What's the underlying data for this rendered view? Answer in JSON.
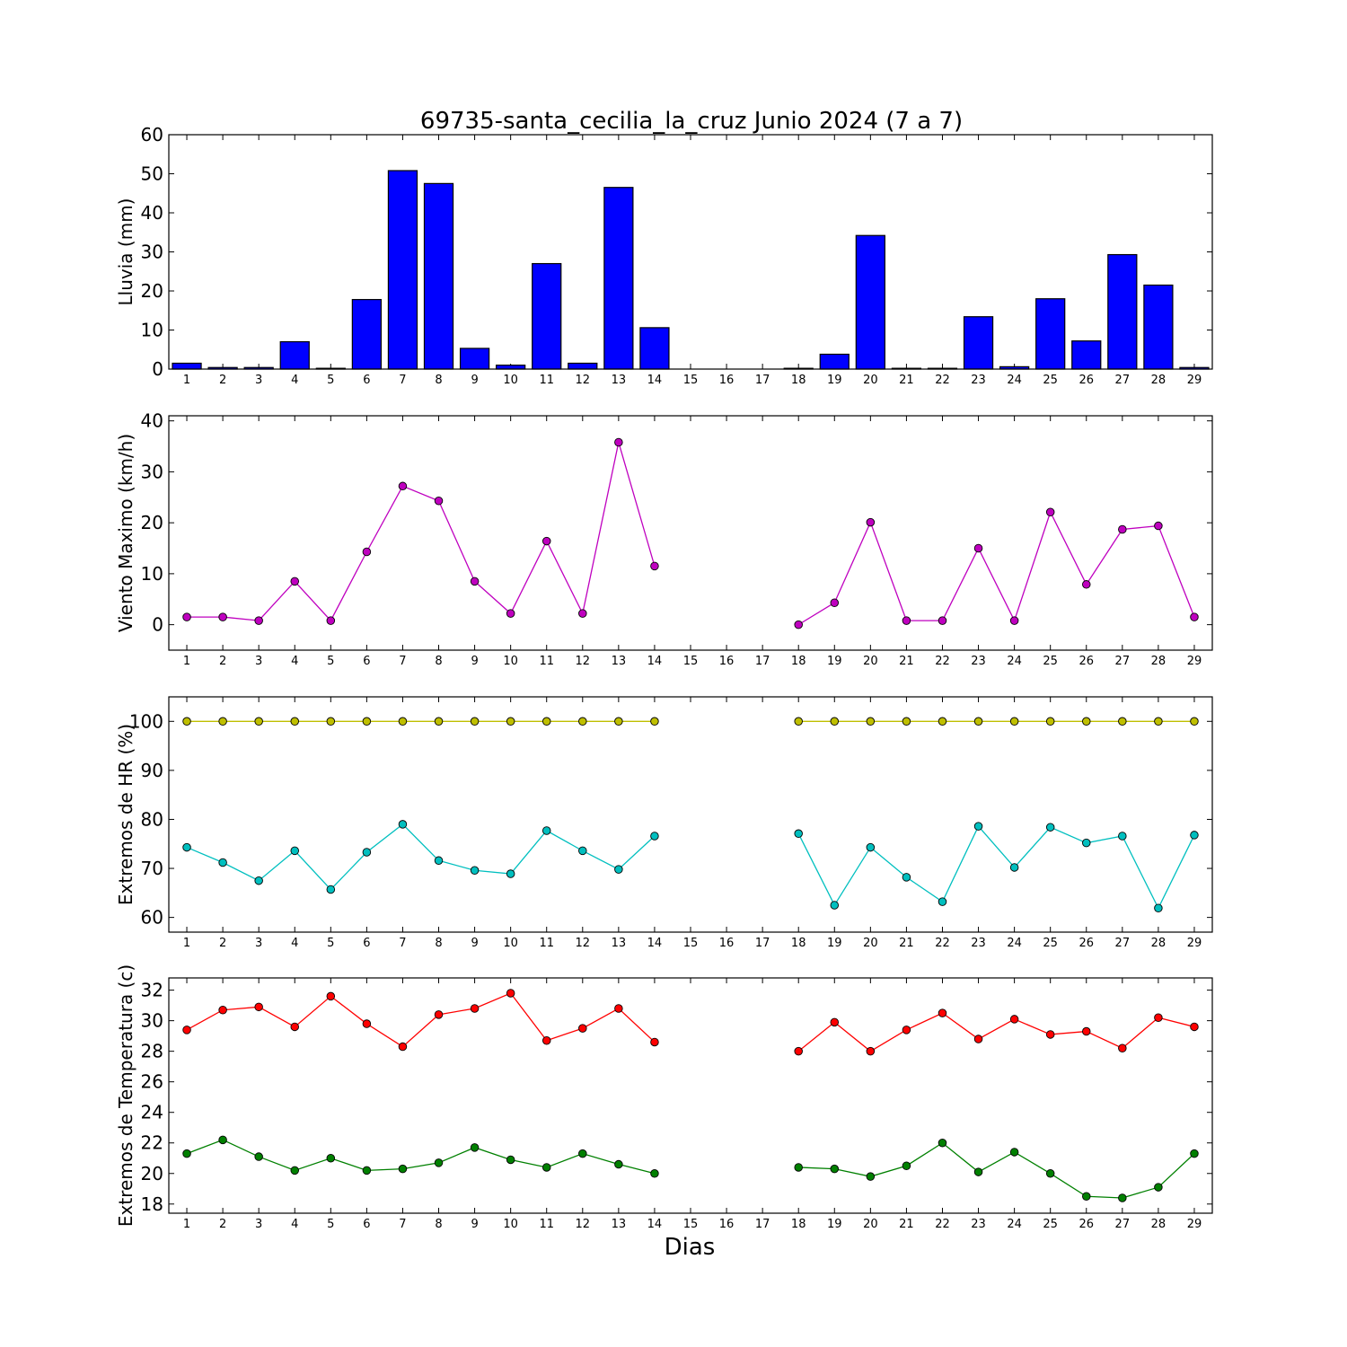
{
  "title": "69735-santa_cecilia_la_cruz Junio 2024  (7 a 7)",
  "xlabel": "Dias",
  "chart_data": [
    {
      "type": "bar",
      "ylabel": "Lluvia (mm)",
      "ylim": [
        0,
        60
      ],
      "yticks": [
        0,
        10,
        20,
        30,
        40,
        50,
        60
      ],
      "xticks": [
        1,
        2,
        3,
        4,
        5,
        6,
        7,
        8,
        9,
        10,
        11,
        12,
        13,
        14,
        15,
        16,
        17,
        18,
        19,
        20,
        21,
        22,
        23,
        24,
        25,
        26,
        27,
        28,
        29
      ],
      "series": [
        {
          "color": "#0000ff",
          "x": [
            1,
            2,
            3,
            4,
            5,
            6,
            7,
            8,
            9,
            10,
            11,
            12,
            13,
            14,
            15,
            16,
            17,
            18,
            19,
            20,
            21,
            22,
            23,
            24,
            25,
            26,
            27,
            28,
            29
          ],
          "values": [
            1.5,
            0.4,
            0.4,
            7.0,
            0.2,
            17.8,
            50.8,
            47.5,
            5.3,
            1.0,
            27.0,
            1.5,
            46.5,
            10.6,
            0,
            0,
            0,
            0.2,
            3.8,
            34.2,
            0.2,
            0.2,
            13.4,
            0.6,
            18.0,
            7.2,
            29.3,
            21.5,
            0.4
          ]
        }
      ]
    },
    {
      "type": "line",
      "ylabel": "Viento Maximo (km/h)",
      "ylim": [
        -5,
        41
      ],
      "yticks": [
        0,
        10,
        20,
        30,
        40
      ],
      "xticks": [
        1,
        2,
        3,
        4,
        5,
        6,
        7,
        8,
        9,
        10,
        11,
        12,
        13,
        14,
        15,
        16,
        17,
        18,
        19,
        20,
        21,
        22,
        23,
        24,
        25,
        26,
        27,
        28,
        29
      ],
      "series": [
        {
          "color": "#bf00bf",
          "segments": [
            {
              "x": [
                1,
                2,
                3,
                4,
                5,
                6,
                7,
                8,
                9,
                10,
                11,
                12,
                13,
                14
              ],
              "y": [
                1.5,
                1.5,
                0.8,
                8.5,
                0.8,
                14.3,
                27.2,
                24.3,
                8.5,
                2.2,
                16.4,
                2.2,
                35.8,
                11.5
              ]
            },
            {
              "x": [
                18,
                19,
                20,
                21,
                22,
                23,
                24,
                25,
                26,
                27,
                28,
                29
              ],
              "y": [
                0.0,
                4.3,
                20.1,
                0.8,
                0.8,
                15.0,
                0.8,
                22.1,
                7.9,
                18.7,
                19.4,
                1.5
              ]
            }
          ]
        }
      ]
    },
    {
      "type": "line",
      "ylabel": "Extremos de HR (%)",
      "ylim": [
        57,
        105
      ],
      "yticks": [
        60,
        70,
        80,
        90,
        100
      ],
      "xticks": [
        1,
        2,
        3,
        4,
        5,
        6,
        7,
        8,
        9,
        10,
        11,
        12,
        13,
        14,
        15,
        16,
        17,
        18,
        19,
        20,
        21,
        22,
        23,
        24,
        25,
        26,
        27,
        28,
        29
      ],
      "series": [
        {
          "color": "#bfbf00",
          "segments": [
            {
              "x": [
                1,
                2,
                3,
                4,
                5,
                6,
                7,
                8,
                9,
                10,
                11,
                12,
                13,
                14
              ],
              "y": [
                100,
                100,
                100,
                100,
                100,
                100,
                100,
                100,
                100,
                100,
                100,
                100,
                100,
                100
              ]
            },
            {
              "x": [
                18,
                19,
                20,
                21,
                22,
                23,
                24,
                25,
                26,
                27,
                28,
                29
              ],
              "y": [
                100,
                100,
                100,
                100,
                100,
                100,
                100,
                100,
                100,
                100,
                100,
                100
              ]
            }
          ]
        },
        {
          "color": "#00bfbf",
          "segments": [
            {
              "x": [
                1,
                2,
                3,
                4,
                5,
                6,
                7,
                8,
                9,
                10,
                11,
                12,
                13,
                14
              ],
              "y": [
                74.3,
                71.2,
                67.5,
                73.6,
                65.7,
                73.3,
                79.0,
                71.6,
                69.6,
                68.9,
                77.7,
                73.6,
                69.8,
                76.6
              ]
            },
            {
              "x": [
                18,
                19,
                20,
                21,
                22,
                23,
                24,
                25,
                26,
                27,
                28,
                29
              ],
              "y": [
                77.1,
                62.5,
                74.3,
                68.2,
                63.2,
                78.6,
                70.2,
                78.4,
                75.2,
                76.6,
                61.9,
                76.8
              ]
            }
          ]
        }
      ]
    },
    {
      "type": "line",
      "ylabel": "Extremos de Temperatura (c)",
      "ylim": [
        17.4,
        32.8
      ],
      "yticks": [
        18,
        20,
        22,
        24,
        26,
        28,
        30,
        32
      ],
      "xticks": [
        1,
        2,
        3,
        4,
        5,
        6,
        7,
        8,
        9,
        10,
        11,
        12,
        13,
        14,
        15,
        16,
        17,
        18,
        19,
        20,
        21,
        22,
        23,
        24,
        25,
        26,
        27,
        28,
        29
      ],
      "series": [
        {
          "color": "#ff0000",
          "segments": [
            {
              "x": [
                1,
                2,
                3,
                4,
                5,
                6,
                7,
                8,
                9,
                10,
                11,
                12,
                13,
                14
              ],
              "y": [
                29.4,
                30.7,
                30.9,
                29.6,
                31.6,
                29.8,
                28.3,
                30.4,
                30.8,
                31.8,
                28.7,
                29.5,
                30.8,
                28.6
              ]
            },
            {
              "x": [
                18,
                19,
                20,
                21,
                22,
                23,
                24,
                25,
                26,
                27,
                28,
                29
              ],
              "y": [
                28.0,
                29.9,
                28.0,
                29.4,
                30.5,
                28.8,
                30.1,
                29.1,
                29.3,
                28.2,
                30.2,
                29.6
              ]
            }
          ]
        },
        {
          "color": "#008000",
          "segments": [
            {
              "x": [
                1,
                2,
                3,
                4,
                5,
                6,
                7,
                8,
                9,
                10,
                11,
                12,
                13,
                14
              ],
              "y": [
                21.3,
                22.2,
                21.1,
                20.2,
                21.0,
                20.2,
                20.3,
                20.7,
                21.7,
                20.9,
                20.4,
                21.3,
                20.6,
                20.0
              ]
            },
            {
              "x": [
                18,
                19,
                20,
                21,
                22,
                23,
                24,
                25,
                26,
                27,
                28,
                29
              ],
              "y": [
                20.4,
                20.3,
                19.8,
                20.5,
                22.0,
                20.1,
                21.4,
                20.0,
                18.5,
                18.4,
                19.1,
                21.3
              ]
            }
          ]
        }
      ]
    }
  ]
}
